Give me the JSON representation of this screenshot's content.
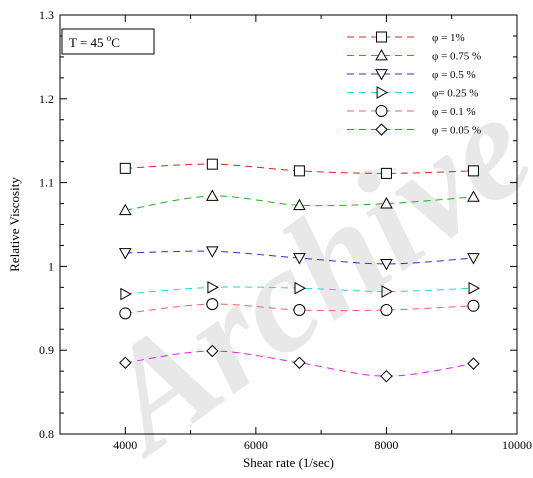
{
  "chart_data": {
    "type": "line",
    "x_axis": {
      "label": "Shear rate (1/sec)",
      "range": [
        3000,
        10000
      ],
      "major_ticks": [
        4000,
        6000,
        8000,
        10000
      ],
      "tick_labels": [
        "4000",
        "6000",
        "8000",
        "10000"
      ],
      "minor_step": 1000
    },
    "y_axis": {
      "label": "Relative Viscosity",
      "range": [
        0.8,
        1.3
      ],
      "major_ticks": [
        0.8,
        0.9,
        1.0,
        1.1,
        1.2,
        1.3
      ],
      "tick_labels": [
        "0.8",
        "0.9",
        "1",
        "1.1",
        "1.2",
        "1.3"
      ],
      "minor_step": 0.025
    },
    "grid": false,
    "annotation": {
      "text_prefix": "T = 45 ",
      "superscript": "o",
      "text_suffix": "C"
    },
    "legend": {
      "position": "top-right"
    },
    "watermark": "Archive",
    "series": [
      {
        "name": "φ = 1%",
        "marker": "square",
        "color": "#e02020",
        "x": [
          4000,
          5333,
          6667,
          8000,
          9333
        ],
        "y": [
          1.117,
          1.122,
          1.114,
          1.111,
          1.114
        ]
      },
      {
        "name": "φ = 0.75 %",
        "marker": "triangle-up",
        "color": "#20b020",
        "x": [
          4000,
          5333,
          6667,
          8000,
          9333
        ],
        "y": [
          1.067,
          1.084,
          1.073,
          1.075,
          1.083
        ]
      },
      {
        "name": "φ =  0.5 %",
        "marker": "triangle-down",
        "color": "#3030c8",
        "x": [
          4000,
          5333,
          6667,
          8000,
          9333
        ],
        "y": [
          1.016,
          1.018,
          1.01,
          1.003,
          1.01
        ]
      },
      {
        "name": "φ=  0.25 %",
        "marker": "triangle-right",
        "color": "#20d8d8",
        "x": [
          4000,
          5333,
          6667,
          8000,
          9333
        ],
        "y": [
          0.967,
          0.975,
          0.974,
          0.97,
          0.974
        ]
      },
      {
        "name": "φ = 0.1 %",
        "marker": "circle",
        "color": "#f06060",
        "x": [
          4000,
          5333,
          6667,
          8000,
          9333
        ],
        "y": [
          0.944,
          0.955,
          0.948,
          0.948,
          0.953
        ]
      },
      {
        "name": "φ = 0.05 %",
        "marker": "diamond",
        "color": "#e020e0",
        "x": [
          4000,
          5333,
          6667,
          8000,
          9333
        ],
        "y": [
          0.885,
          0.899,
          0.885,
          0.869,
          0.884
        ]
      }
    ]
  }
}
